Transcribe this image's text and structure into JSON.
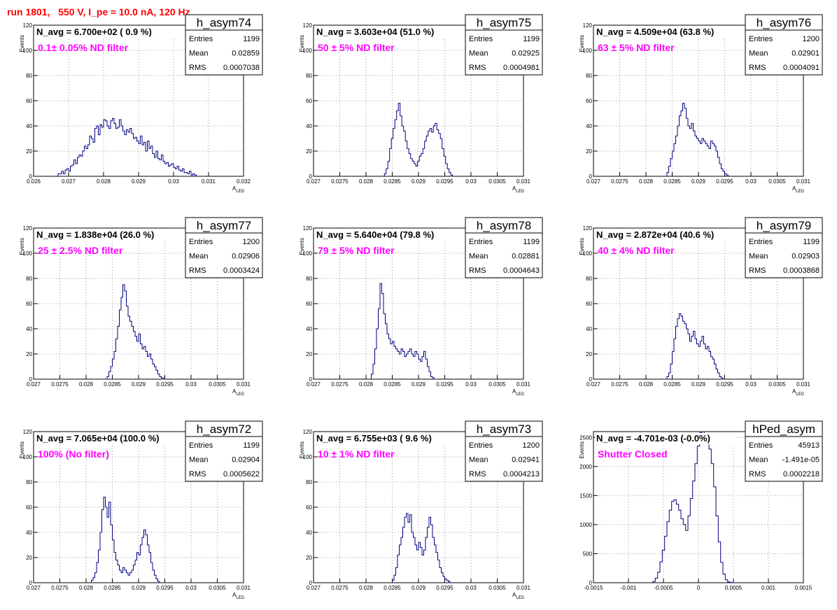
{
  "header": {
    "run_title": "run 1801,   550 V, I_pe ≈ 10.0 nA, 120 Hz"
  },
  "colors": {
    "line": "#000080",
    "run_title": "#ff0000",
    "filter_label": "#ff00ff",
    "grid": "#999999"
  },
  "stats_labels": {
    "entries": "Entries",
    "mean": "Mean",
    "rms": "RMS"
  },
  "chart_data": [
    {
      "type": "histogram",
      "name": "h_asym74",
      "navg": "N_avg = 6.700e+02 ( 0.9 %)",
      "filter": "0.1± 0.05% ND filter",
      "entries": "1199",
      "mean": "0.02859",
      "rms": "0.0007038",
      "ylabel": "Events",
      "xlabel": "A_LED",
      "xlim": [
        0.026,
        0.032
      ],
      "ylim": [
        0,
        120
      ],
      "xticks": [
        0.026,
        0.027,
        0.028,
        0.029,
        0.03,
        0.031,
        0.032
      ],
      "xtick_labels": [
        "0.026",
        "0.027",
        "0.028",
        "0.029",
        "0.03",
        "0.031",
        "0.032"
      ],
      "yticks": [
        0,
        20,
        40,
        60,
        80,
        100,
        120
      ],
      "ytick_labels": [
        "0",
        "20",
        "40",
        "60",
        "80",
        "100",
        "120"
      ],
      "bins": {
        "lo": 0.0267,
        "width": 5e-05,
        "counts": [
          2,
          2,
          4,
          2,
          5,
          6,
          4,
          8,
          9,
          13,
          10,
          15,
          17,
          16,
          20,
          24,
          22,
          25,
          32,
          30,
          27,
          38,
          40,
          33,
          41,
          39,
          45,
          44,
          40,
          38,
          44,
          46,
          42,
          38,
          39,
          45,
          40,
          36,
          33,
          37,
          35,
          38,
          34,
          30,
          31,
          28,
          26,
          32,
          25,
          27,
          20,
          28,
          22,
          24,
          18,
          15,
          20,
          14,
          13,
          17,
          12,
          10,
          11,
          8,
          9,
          10,
          7,
          6,
          8,
          5,
          4,
          6,
          3,
          3,
          2,
          4,
          1,
          2,
          1,
          0
        ]
      }
    },
    {
      "type": "histogram",
      "name": "h_asym75",
      "navg": "N_avg = 3.603e+04 (51.0 %)",
      "filter": "50 ± 5% ND filter",
      "entries": "1199",
      "mean": "0.02925",
      "rms": "0.0004981",
      "ylabel": "Events",
      "xlabel": "A_LED",
      "xlim": [
        0.027,
        0.031
      ],
      "ylim": [
        0,
        120
      ],
      "xticks": [
        0.027,
        0.0275,
        0.028,
        0.0285,
        0.029,
        0.0295,
        0.03,
        0.0305,
        0.031
      ],
      "xtick_labels": [
        "0.027",
        "0.0275",
        "0.028",
        "0.0285",
        "0.029",
        "0.0295",
        "0.03",
        "0.0305",
        "0.031"
      ],
      "yticks": [
        0,
        20,
        40,
        60,
        80,
        100,
        120
      ],
      "ytick_labels": [
        "0",
        "20",
        "40",
        "60",
        "80",
        "100",
        "120"
      ],
      "bins": {
        "lo": 0.02835,
        "width": 3.333e-05,
        "counts": [
          2,
          6,
          12,
          22,
          30,
          38,
          45,
          52,
          58,
          48,
          40,
          36,
          28,
          22,
          18,
          14,
          12,
          10,
          8,
          12,
          16,
          18,
          22,
          28,
          32,
          36,
          38,
          35,
          40,
          42,
          37,
          34,
          30,
          22,
          16,
          10,
          6,
          3,
          1,
          0
        ]
      }
    },
    {
      "type": "histogram",
      "name": "h_asym76",
      "navg": "N_avg = 4.509e+04 (63.8 %)",
      "filter": "63 ± 5% ND filter",
      "entries": "1200",
      "mean": "0.02901",
      "rms": "0.0004091",
      "ylabel": "Events",
      "xlabel": "A_LED",
      "xlim": [
        0.027,
        0.031
      ],
      "ylim": [
        0,
        120
      ],
      "xticks": [
        0.027,
        0.0275,
        0.028,
        0.0285,
        0.029,
        0.0295,
        0.03,
        0.0305,
        0.031
      ],
      "xtick_labels": [
        "0.027",
        "0.0275",
        "0.028",
        "0.0285",
        "0.029",
        "0.0295",
        "0.03",
        "0.0305",
        "0.031"
      ],
      "yticks": [
        0,
        20,
        40,
        60,
        80,
        100,
        120
      ],
      "ytick_labels": [
        "0",
        "20",
        "40",
        "60",
        "80",
        "100",
        "120"
      ],
      "bins": {
        "lo": 0.0284,
        "width": 3.333e-05,
        "counts": [
          3,
          8,
          14,
          20,
          26,
          32,
          40,
          48,
          52,
          58,
          54,
          46,
          40,
          38,
          42,
          36,
          32,
          30,
          28,
          26,
          30,
          28,
          26,
          24,
          22,
          28,
          26,
          24,
          20,
          15,
          10,
          6,
          4,
          2,
          1,
          0
        ]
      }
    },
    {
      "type": "histogram",
      "name": "h_asym77",
      "navg": "N_avg = 1.838e+04 (26.0 %)",
      "filter": "25 ± 2.5% ND filter",
      "entries": "1200",
      "mean": "0.02906",
      "rms": "0.0003424",
      "ylabel": "Events",
      "xlabel": "A_LED",
      "xlim": [
        0.027,
        0.031
      ],
      "ylim": [
        0,
        120
      ],
      "xticks": [
        0.027,
        0.0275,
        0.028,
        0.0285,
        0.029,
        0.0295,
        0.03,
        0.0305,
        0.031
      ],
      "xtick_labels": [
        "0.027",
        "0.0275",
        "0.028",
        "0.0285",
        "0.029",
        "0.0295",
        "0.03",
        "0.0305",
        "0.031"
      ],
      "yticks": [
        0,
        20,
        40,
        60,
        80,
        100,
        120
      ],
      "ytick_labels": [
        "0",
        "20",
        "40",
        "60",
        "80",
        "100",
        "120"
      ],
      "bins": {
        "lo": 0.0284,
        "width": 3.333e-05,
        "counts": [
          2,
          6,
          10,
          16,
          22,
          32,
          42,
          55,
          65,
          75,
          70,
          58,
          50,
          46,
          42,
          38,
          34,
          30,
          36,
          28,
          24,
          26,
          22,
          18,
          20,
          16,
          12,
          10,
          7,
          4,
          2,
          1,
          1,
          0
        ]
      }
    },
    {
      "type": "histogram",
      "name": "h_asym78",
      "navg": "N_avg = 5.640e+04 (79.8 %)",
      "filter": "79 ± 5% ND filter",
      "entries": "1199",
      "mean": "0.02881",
      "rms": "0.0004643",
      "ylabel": "Events",
      "xlabel": "A_LED",
      "xlim": [
        0.027,
        0.031
      ],
      "ylim": [
        0,
        120
      ],
      "xticks": [
        0.027,
        0.0275,
        0.028,
        0.0285,
        0.029,
        0.0295,
        0.03,
        0.0305,
        0.031
      ],
      "xtick_labels": [
        "0.027",
        "0.0275",
        "0.028",
        "0.0285",
        "0.029",
        "0.0295",
        "0.03",
        "0.0305",
        "0.031"
      ],
      "yticks": [
        0,
        20,
        40,
        60,
        80,
        100,
        120
      ],
      "ytick_labels": [
        "0",
        "20",
        "40",
        "60",
        "80",
        "100",
        "120"
      ],
      "bins": {
        "lo": 0.0281,
        "width": 3.333e-05,
        "counts": [
          4,
          12,
          24,
          40,
          56,
          76,
          68,
          52,
          44,
          36,
          32,
          28,
          30,
          26,
          24,
          22,
          20,
          24,
          22,
          18,
          20,
          22,
          24,
          20,
          18,
          22,
          20,
          16,
          14,
          18,
          22,
          16,
          10,
          6,
          2,
          1,
          0
        ]
      }
    },
    {
      "type": "histogram",
      "name": "h_asym79",
      "navg": "N_avg = 2.872e+04 (40.6 %)",
      "filter": "40 ± 4% ND filter",
      "entries": "1199",
      "mean": "0.02903",
      "rms": "0.0003868",
      "ylabel": "Events",
      "xlabel": "A_LED",
      "xlim": [
        0.027,
        0.031
      ],
      "ylim": [
        0,
        120
      ],
      "xticks": [
        0.027,
        0.0275,
        0.028,
        0.0285,
        0.029,
        0.0295,
        0.03,
        0.0305,
        0.031
      ],
      "xtick_labels": [
        "0.027",
        "0.0275",
        "0.028",
        "0.0285",
        "0.029",
        "0.0295",
        "0.03",
        "0.0305",
        "0.031"
      ],
      "yticks": [
        0,
        20,
        40,
        60,
        80,
        100,
        120
      ],
      "ytick_labels": [
        "0",
        "20",
        "40",
        "60",
        "80",
        "100",
        "120"
      ],
      "bins": {
        "lo": 0.0284,
        "width": 3.333e-05,
        "counts": [
          2,
          5,
          12,
          22,
          32,
          42,
          48,
          52,
          50,
          46,
          44,
          40,
          36,
          30,
          34,
          38,
          32,
          28,
          26,
          30,
          34,
          28,
          24,
          26,
          22,
          18,
          16,
          12,
          8,
          5,
          2,
          1,
          0
        ]
      }
    },
    {
      "type": "histogram",
      "name": "h_asym72",
      "navg": "N_avg = 7.065e+04 (100.0 %)",
      "filter": "100% (No filter)",
      "entries": "1199",
      "mean": "0.02904",
      "rms": "0.0005622",
      "ylabel": "Events",
      "xlabel": "A_LED",
      "xlim": [
        0.027,
        0.031
      ],
      "ylim": [
        0,
        120
      ],
      "xticks": [
        0.027,
        0.0275,
        0.028,
        0.0285,
        0.029,
        0.0295,
        0.03,
        0.0305,
        0.031
      ],
      "xtick_labels": [
        "0.027",
        "0.0275",
        "0.028",
        "0.0285",
        "0.029",
        "0.0295",
        "0.03",
        "0.0305",
        "0.031"
      ],
      "yticks": [
        0,
        20,
        40,
        60,
        80,
        100,
        120
      ],
      "ytick_labels": [
        "0",
        "20",
        "40",
        "60",
        "80",
        "100",
        "120"
      ],
      "bins": {
        "lo": 0.0281,
        "width": 3.333e-05,
        "counts": [
          2,
          4,
          8,
          16,
          26,
          40,
          58,
          68,
          60,
          52,
          64,
          46,
          34,
          24,
          18,
          14,
          10,
          8,
          12,
          10,
          8,
          6,
          8,
          10,
          14,
          18,
          24,
          22,
          30,
          36,
          42,
          38,
          30,
          24,
          16,
          10,
          6,
          3,
          1,
          0
        ]
      }
    },
    {
      "type": "histogram",
      "name": "h_asym73",
      "navg": "N_avg = 6.755e+03 ( 9.6 %)",
      "filter": "10 ± 1% ND filter",
      "entries": "1200",
      "mean": "0.02941",
      "rms": "0.0004213",
      "ylabel": "Events",
      "xlabel": "A_LED",
      "xlim": [
        0.027,
        0.031
      ],
      "ylim": [
        0,
        120
      ],
      "xticks": [
        0.027,
        0.0275,
        0.028,
        0.0285,
        0.029,
        0.0295,
        0.03,
        0.0305,
        0.031
      ],
      "xtick_labels": [
        "0.027",
        "0.0275",
        "0.028",
        "0.0285",
        "0.029",
        "0.0295",
        "0.03",
        "0.0305",
        "0.031"
      ],
      "yticks": [
        0,
        20,
        40,
        60,
        80,
        100,
        120
      ],
      "ytick_labels": [
        "0",
        "20",
        "40",
        "60",
        "80",
        "100",
        "120"
      ],
      "bins": {
        "lo": 0.0285,
        "width": 3.333e-05,
        "counts": [
          2,
          6,
          12,
          22,
          30,
          36,
          44,
          52,
          55,
          48,
          54,
          40,
          36,
          30,
          26,
          32,
          28,
          22,
          26,
          36,
          44,
          52,
          46,
          36,
          30,
          24,
          18,
          12,
          8,
          5,
          3,
          2,
          1,
          0
        ]
      }
    },
    {
      "type": "histogram",
      "name": "hPed_asym",
      "navg": "N_avg = -4.701e-03 (-0.0%)",
      "filter": "Shutter Closed",
      "entries": "45913",
      "mean": "-1.491e-05",
      "rms": "0.0002218",
      "ylabel": "Events",
      "xlabel": "",
      "xlim": [
        -0.0015,
        0.0015
      ],
      "ylim": [
        0,
        2600
      ],
      "xticks": [
        -0.0015,
        -0.001,
        -0.0005,
        0,
        0.0005,
        0.001,
        0.0015
      ],
      "xtick_labels": [
        "-0.0015",
        "-0.001",
        "-0.0005",
        "0",
        "0.0005",
        "0.001",
        "0.0015"
      ],
      "yticks": [
        0,
        500,
        1000,
        1500,
        2000,
        2500
      ],
      "ytick_labels": [
        "0",
        "500",
        "1000",
        "1500",
        "2000",
        "2500"
      ],
      "bins": {
        "lo": -0.00065,
        "width": 3.333e-05,
        "counts": [
          20,
          80,
          180,
          360,
          560,
          800,
          1050,
          1250,
          1400,
          1430,
          1350,
          1250,
          1100,
          1000,
          900,
          1150,
          1450,
          1750,
          2050,
          2350,
          2580,
          2620,
          2560,
          2450,
          2300,
          2050,
          1650,
          1150,
          700,
          350,
          150,
          50,
          15,
          5,
          0
        ]
      }
    }
  ]
}
